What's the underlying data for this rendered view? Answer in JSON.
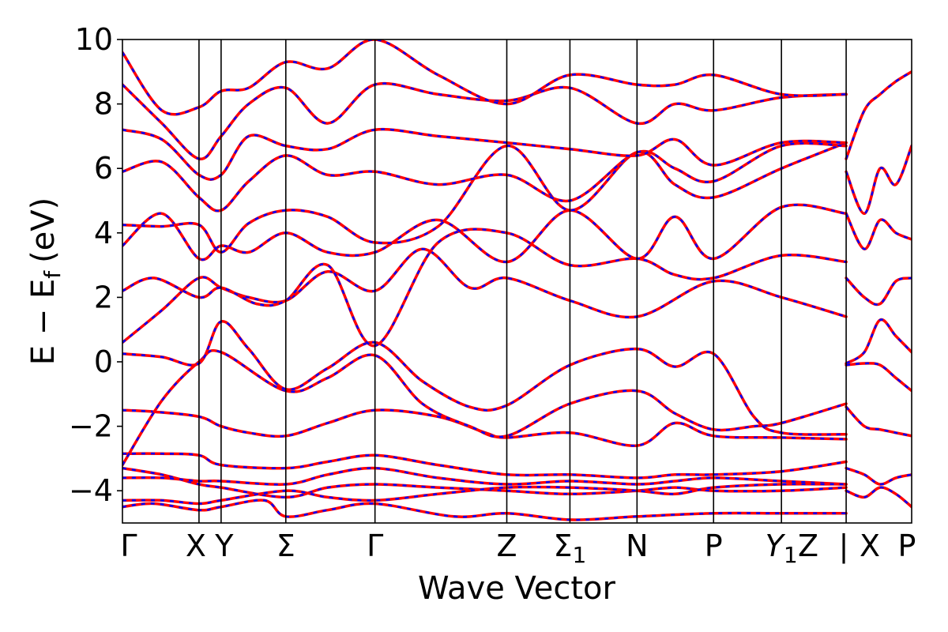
{
  "chart_data": {
    "type": "line",
    "title": "",
    "xlabel": "Wave Vector",
    "ylabel_parts": {
      "main": "E − E",
      "sub": "f",
      "unit": "(eV)"
    },
    "ylim": [
      -5,
      10
    ],
    "yticks": [
      -4,
      -2,
      0,
      2,
      4,
      6,
      8,
      10
    ],
    "ytick_labels": [
      "−4",
      "−2",
      "0",
      "2",
      "4",
      "6",
      "8",
      "10"
    ],
    "xlim": [
      0,
      1.0
    ],
    "kpoints": [
      {
        "label": "Γ",
        "x": 0.0,
        "sub": ""
      },
      {
        "label": "X",
        "x": 0.097,
        "sub": ""
      },
      {
        "label": "Y",
        "x": 0.125,
        "sub": ""
      },
      {
        "label": "Σ",
        "x": 0.207,
        "sub": ""
      },
      {
        "label": "Γ",
        "x": 0.32,
        "sub": ""
      },
      {
        "label": "Z",
        "x": 0.487,
        "sub": ""
      },
      {
        "label": "Σ",
        "x": 0.567,
        "sub": "1"
      },
      {
        "label": "N",
        "x": 0.652,
        "sub": ""
      },
      {
        "label": "P",
        "x": 0.749,
        "sub": ""
      },
      {
        "label": "Y",
        "x": 0.835,
        "sub": "1"
      },
      {
        "label": "Z",
        "x": 0.917,
        "sub": ""
      },
      {
        "label": "|",
        "x": 0.917,
        "sub": ""
      },
      {
        "label": "X",
        "x": 0.917,
        "sub": ""
      },
      {
        "label": "P",
        "x": 1.0,
        "sub": ""
      }
    ],
    "series_colors": {
      "primary": "#ff0000",
      "overlay": "#0000ff"
    },
    "grid": false,
    "bands": [
      {
        "x": [
          0,
          0.05,
          0.097,
          0.125,
          0.207,
          0.26,
          0.32,
          0.4,
          0.487,
          0.567,
          0.652,
          0.7,
          0.749,
          0.835,
          0.917
        ],
        "y": [
          -3.3,
          -3.5,
          -3.8,
          -3.9,
          -4.2,
          -3.9,
          -3.8,
          -3.9,
          -4.0,
          -4.1,
          -4.0,
          -3.9,
          -4.0,
          -4.0,
          -3.9
        ]
      },
      {
        "x": [
          0,
          0.05,
          0.097,
          0.125,
          0.207,
          0.26,
          0.32,
          0.4,
          0.487,
          0.567,
          0.652,
          0.7,
          0.749,
          0.835,
          0.917
        ],
        "y": [
          -3.6,
          -3.6,
          -3.7,
          -3.7,
          -3.8,
          -3.5,
          -3.3,
          -3.6,
          -3.8,
          -3.7,
          -3.8,
          -3.7,
          -3.6,
          -3.7,
          -3.8
        ]
      },
      {
        "x": [
          0,
          0.05,
          0.097,
          0.125,
          0.207,
          0.26,
          0.32,
          0.4,
          0.487,
          0.567,
          0.652,
          0.7,
          0.749,
          0.835,
          0.917
        ],
        "y": [
          -4.3,
          -4.3,
          -4.4,
          -4.3,
          -4.0,
          -4.2,
          -4.3,
          -4.1,
          -3.9,
          -3.9,
          -4.0,
          -4.1,
          -3.9,
          -3.8,
          -3.8
        ]
      },
      {
        "x": [
          0,
          0.05,
          0.097,
          0.125,
          0.207,
          0.26,
          0.32,
          0.4,
          0.487,
          0.567,
          0.652,
          0.7,
          0.749,
          0.835,
          0.917
        ],
        "y": [
          -2.85,
          -2.85,
          -2.9,
          -3.2,
          -3.3,
          -3.1,
          -2.9,
          -3.2,
          -3.5,
          -3.5,
          -3.6,
          -3.5,
          -3.5,
          -3.4,
          -3.1
        ]
      },
      {
        "x": [
          0,
          0.04,
          0.097,
          0.125,
          0.16,
          0.207,
          0.26,
          0.32,
          0.4,
          0.46,
          0.487,
          0.567,
          0.652,
          0.7,
          0.749,
          0.835,
          0.917
        ],
        "y": [
          -1.5,
          -1.55,
          -1.7,
          -2.0,
          -2.2,
          -2.3,
          -1.9,
          -1.5,
          -1.7,
          -2.2,
          -2.35,
          -2.2,
          -2.6,
          -1.9,
          -2.3,
          -2.35,
          -2.4
        ]
      },
      {
        "x": [
          0,
          0.05,
          0.097,
          0.125,
          0.207,
          0.26,
          0.32,
          0.38,
          0.44,
          0.487,
          0.567,
          0.652,
          0.7,
          0.749,
          0.8,
          0.835,
          0.917
        ],
        "y": [
          -3.2,
          -1.2,
          0.0,
          0.3,
          -0.9,
          -0.5,
          0.2,
          -1.3,
          -2.0,
          -2.3,
          -1.3,
          -0.9,
          -1.6,
          -2.1,
          -2.0,
          -1.9,
          -1.3
        ]
      },
      {
        "x": [
          0,
          0.05,
          0.097,
          0.125,
          0.16,
          0.207,
          0.26,
          0.32,
          0.38,
          0.44,
          0.487,
          0.567,
          0.652,
          0.7,
          0.749,
          0.8,
          0.835,
          0.917
        ],
        "y": [
          0.25,
          0.15,
          -0.05,
          1.25,
          0.4,
          -0.85,
          -0.2,
          0.6,
          -0.6,
          -1.4,
          -1.35,
          -0.1,
          0.4,
          -0.15,
          0.25,
          -1.7,
          -2.2,
          -2.25
        ]
      },
      {
        "x": [
          0,
          0.05,
          0.097,
          0.125,
          0.16,
          0.207,
          0.26,
          0.32,
          0.38,
          0.44,
          0.487,
          0.567,
          0.652,
          0.749,
          0.835,
          0.917
        ],
        "y": [
          0.6,
          1.6,
          2.6,
          2.3,
          2.0,
          1.9,
          2.8,
          2.2,
          3.5,
          2.3,
          2.6,
          1.9,
          1.4,
          2.5,
          2.0,
          1.4
        ]
      },
      {
        "x": [
          0,
          0.04,
          0.097,
          0.125,
          0.17,
          0.207,
          0.26,
          0.32,
          0.4,
          0.487,
          0.567,
          0.652,
          0.7,
          0.749,
          0.835,
          0.917
        ],
        "y": [
          2.2,
          2.6,
          2.0,
          2.3,
          1.8,
          1.9,
          3.0,
          0.5,
          3.7,
          4.0,
          3.0,
          3.2,
          2.7,
          2.6,
          3.3,
          3.1
        ]
      },
      {
        "x": [
          0,
          0.05,
          0.097,
          0.125,
          0.16,
          0.207,
          0.26,
          0.32,
          0.4,
          0.487,
          0.567,
          0.652,
          0.7,
          0.749,
          0.835,
          0.917
        ],
        "y": [
          3.6,
          4.6,
          3.2,
          3.6,
          3.4,
          4.0,
          3.4,
          3.4,
          4.4,
          3.1,
          4.7,
          3.2,
          4.5,
          3.2,
          4.8,
          4.6
        ]
      },
      {
        "x": [
          0,
          0.05,
          0.097,
          0.125,
          0.16,
          0.207,
          0.26,
          0.32,
          0.4,
          0.487,
          0.567,
          0.652,
          0.7,
          0.749,
          0.835,
          0.917
        ],
        "y": [
          4.25,
          4.2,
          4.25,
          3.4,
          4.3,
          4.7,
          4.5,
          3.7,
          4.2,
          6.7,
          4.7,
          6.5,
          5.5,
          5.1,
          6.0,
          6.8
        ]
      },
      {
        "x": [
          0,
          0.05,
          0.097,
          0.125,
          0.16,
          0.207,
          0.26,
          0.32,
          0.4,
          0.487,
          0.567,
          0.652,
          0.7,
          0.749,
          0.835,
          0.917
        ],
        "y": [
          5.9,
          6.2,
          5.1,
          4.7,
          5.6,
          6.4,
          5.8,
          5.9,
          5.5,
          5.8,
          5.0,
          6.5,
          6.0,
          5.6,
          6.7,
          6.7
        ]
      },
      {
        "x": [
          0,
          0.05,
          0.097,
          0.125,
          0.16,
          0.207,
          0.26,
          0.32,
          0.4,
          0.487,
          0.567,
          0.652,
          0.7,
          0.749,
          0.835,
          0.917
        ],
        "y": [
          7.2,
          6.9,
          5.8,
          5.8,
          7.0,
          6.7,
          6.6,
          7.2,
          7.0,
          6.8,
          6.6,
          6.4,
          6.9,
          6.1,
          6.8,
          6.8
        ]
      },
      {
        "x": [
          0,
          0.05,
          0.097,
          0.125,
          0.16,
          0.207,
          0.26,
          0.32,
          0.4,
          0.487,
          0.567,
          0.652,
          0.7,
          0.749,
          0.835,
          0.917
        ],
        "y": [
          8.6,
          7.4,
          6.3,
          7.0,
          8.0,
          8.5,
          7.4,
          8.6,
          8.3,
          8.1,
          8.5,
          7.4,
          8.0,
          7.8,
          8.2,
          8.3
        ]
      },
      {
        "x": [
          0,
          0.05,
          0.097,
          0.125,
          0.16,
          0.207,
          0.26,
          0.32,
          0.4,
          0.487,
          0.567,
          0.652,
          0.7,
          0.749,
          0.835,
          0.917
        ],
        "y": [
          9.6,
          7.8,
          7.9,
          8.4,
          8.5,
          9.3,
          9.1,
          10.0,
          8.9,
          8.0,
          8.9,
          8.6,
          8.6,
          8.9,
          8.3,
          8.3
        ]
      },
      {
        "x": [
          0,
          0.04,
          0.097,
          0.125,
          0.18,
          0.207,
          0.26,
          0.32,
          0.42,
          0.487,
          0.567,
          0.652,
          0.749,
          0.835,
          0.917
        ],
        "y": [
          -4.5,
          -4.4,
          -4.6,
          -4.5,
          -4.3,
          -4.8,
          -4.6,
          -4.4,
          -4.8,
          -4.7,
          -4.9,
          -4.8,
          -4.7,
          -4.7,
          -4.7
        ]
      },
      {
        "x": [
          0.917,
          0.94,
          0.96,
          0.98,
          1.0
        ],
        "y": [
          -0.05,
          0.3,
          1.3,
          0.8,
          0.3
        ]
      },
      {
        "x": [
          0.917,
          0.94,
          0.96,
          0.98,
          1.0
        ],
        "y": [
          2.6,
          2.0,
          1.8,
          2.5,
          2.6
        ]
      },
      {
        "x": [
          0.917,
          0.94,
          0.96,
          0.98,
          1.0
        ],
        "y": [
          4.6,
          3.5,
          4.4,
          4.0,
          3.8
        ]
      },
      {
        "x": [
          0.917,
          0.94,
          0.96,
          0.98,
          1.0
        ],
        "y": [
          5.9,
          4.6,
          6.0,
          5.5,
          6.7
        ]
      },
      {
        "x": [
          0.917,
          0.94,
          0.96,
          0.98,
          1.0
        ],
        "y": [
          6.3,
          7.8,
          8.3,
          8.7,
          9.0
        ]
      },
      {
        "x": [
          0.917,
          0.94,
          0.96,
          0.98,
          1.0
        ],
        "y": [
          -1.4,
          -2.0,
          -2.1,
          -2.2,
          -2.3
        ]
      },
      {
        "x": [
          0.917,
          0.94,
          0.96,
          0.98,
          1.0
        ],
        "y": [
          -0.1,
          -0.05,
          -0.1,
          -0.5,
          -0.9
        ]
      },
      {
        "x": [
          0.917,
          0.94,
          0.96,
          0.98,
          1.0
        ],
        "y": [
          -3.3,
          -3.5,
          -3.8,
          -3.6,
          -3.5
        ]
      },
      {
        "x": [
          0.917,
          0.94,
          0.96,
          0.98,
          1.0
        ],
        "y": [
          -4.0,
          -4.2,
          -3.9,
          -4.1,
          -4.5
        ]
      }
    ]
  }
}
